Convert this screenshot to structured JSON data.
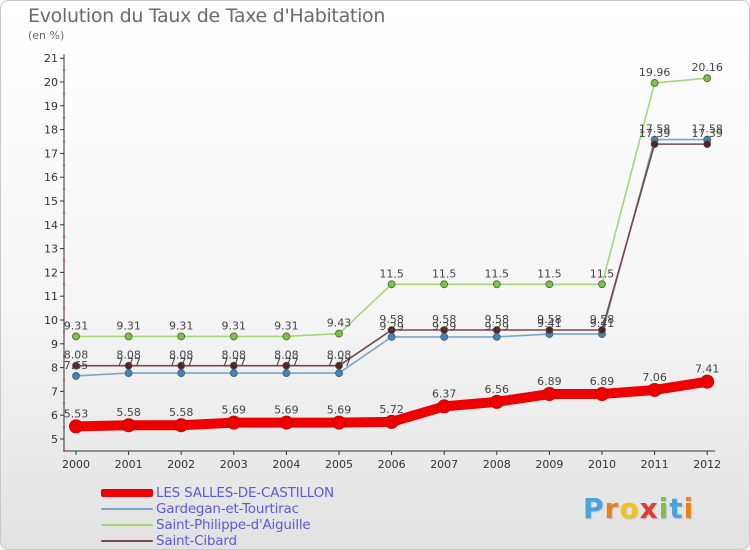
{
  "header": {
    "title": "Evolution du Taux de Taxe d'Habitation",
    "subtitle": "(en %)"
  },
  "brand": {
    "name": "Proxiti",
    "letters": [
      {
        "ch": "P",
        "color": "#4aa3df"
      },
      {
        "ch": "r",
        "color": "#e8821e"
      },
      {
        "ch": "o",
        "color": "#f2c31b"
      },
      {
        "ch": "x",
        "color": "#e23b2e"
      },
      {
        "ch": "i",
        "color": "#7cc242"
      },
      {
        "ch": "t",
        "color": "#4aa3df"
      },
      {
        "ch": "i",
        "color": "#e8821e"
      }
    ]
  },
  "chart_data": {
    "type": "line",
    "title": "Evolution du Taux de Taxe d'Habitation",
    "subtitle": "(en %)",
    "xlabel": "",
    "ylabel": "",
    "x": [
      "2000",
      "2001",
      "2002",
      "2003",
      "2004",
      "2005",
      "2006",
      "2007",
      "2008",
      "2009",
      "2010",
      "2011",
      "2012"
    ],
    "ylim": [
      5,
      21
    ],
    "yticks": [
      5,
      6,
      7,
      8,
      9,
      10,
      11,
      12,
      13,
      14,
      15,
      16,
      17,
      18,
      19,
      20,
      21
    ],
    "grid": false,
    "legend_position": "bottom-left",
    "series": [
      {
        "name": "LES SALLES-DE-CASTILLON",
        "color": "#ee0000",
        "marker_color": "#ee0000",
        "emphasis": true,
        "values": [
          5.53,
          5.58,
          5.58,
          5.69,
          5.69,
          5.69,
          5.72,
          6.37,
          6.56,
          6.89,
          6.89,
          7.06,
          7.41
        ],
        "labels": [
          "5.53",
          "5.58",
          "5.58",
          "5.69",
          "5.69",
          "5.69",
          "5.72",
          "6.37",
          "6.56",
          "6.89",
          "6.89",
          "7.06",
          "7.41"
        ]
      },
      {
        "name": "Gardegan-et-Tourtirac",
        "color": "#7aa6c8",
        "marker_color": "#3a87c8",
        "values": [
          7.65,
          7.77,
          7.77,
          7.77,
          7.77,
          7.77,
          9.29,
          9.29,
          9.29,
          9.41,
          9.41,
          17.58,
          17.58
        ],
        "labels": [
          "7.65",
          "7.77",
          "7.77",
          "7.77",
          "7.77",
          "7.77",
          "9.29",
          "9.29",
          "9.29",
          "9.41",
          "9.41",
          "17.58",
          "17.58"
        ]
      },
      {
        "name": "Saint-Philippe-d'Aiguille",
        "color": "#a0d878",
        "marker_color": "#78c83c",
        "values": [
          9.31,
          9.31,
          9.31,
          9.31,
          9.31,
          9.43,
          11.5,
          11.5,
          11.5,
          11.5,
          11.5,
          19.96,
          20.16
        ],
        "labels": [
          "9.31",
          "9.31",
          "9.31",
          "9.31",
          "9.31",
          "9.43",
          "11.5",
          "11.5",
          "11.5",
          "11.5",
          "11.5",
          "19.96",
          "20.16"
        ]
      },
      {
        "name": "Saint-Cibard",
        "color": "#784848",
        "marker_color": "#5a2020",
        "values": [
          8.08,
          8.08,
          8.08,
          8.08,
          8.08,
          8.08,
          9.58,
          9.58,
          9.58,
          9.58,
          9.58,
          17.39,
          17.39
        ],
        "labels": [
          "8.08",
          "8.08",
          "8.08",
          "8.08",
          "8.08",
          "8.08",
          "9.58",
          "9.58",
          "9.58",
          "9.58",
          "9.58",
          "17.39",
          "17.39"
        ]
      }
    ]
  }
}
